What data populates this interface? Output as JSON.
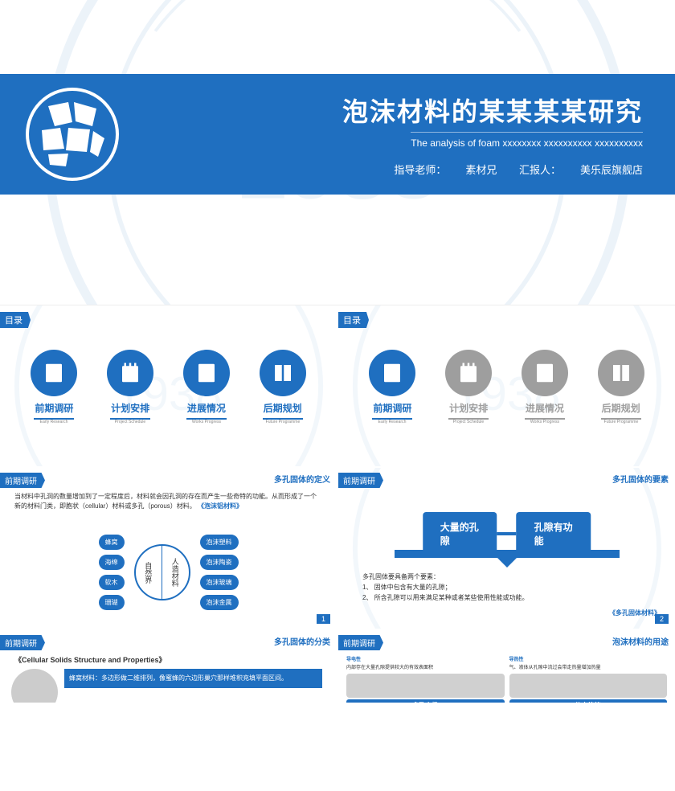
{
  "colors": {
    "primary": "#1f6fc0",
    "gray": "#9e9e9e",
    "dark": "#333333",
    "white": "#ffffff"
  },
  "title": {
    "main": "泡沫材料的某某某某研究",
    "sub": "The analysis of foam xxxxxxxx xxxxxxxxxx xxxxxxxxxx",
    "advisor_label": "指导老师：",
    "advisor": "素材兄",
    "reporter_label": "汇报人：",
    "reporter": "美乐辰旗舰店"
  },
  "toc": {
    "label": "目录",
    "items": [
      {
        "cn": "前期调研",
        "en": "Early Research"
      },
      {
        "cn": "计划安排",
        "en": "Project Schedule"
      },
      {
        "cn": "进展情况",
        "en": "Works Progress"
      },
      {
        "cn": "后期规划",
        "en": "Future Programme"
      }
    ],
    "active_index": 0
  },
  "s3": {
    "section": "前期调研",
    "heading": "多孔固体的定义",
    "text": "当材料中孔洞的数量增加到了一定程度后，材料就会因孔洞的存在而产生一些奇特的功能。从而形成了一个新的材料门类，即胞状（cellular）材料或多孔（porous）材料。",
    "ref": "《泡沫铝材料》",
    "center_left": "自然界",
    "center_right": "人造材料",
    "left_bubbles": [
      "蜂窝",
      "海绵",
      "软木",
      "珊瑚"
    ],
    "right_bubbles": [
      "泡沫塑料",
      "泡沫陶瓷",
      "泡沫玻璃",
      "泡沫金属"
    ],
    "page": "1"
  },
  "s4": {
    "section": "前期调研",
    "heading": "多孔固体的要素",
    "pill_left": "大量的孔隙",
    "pill_right": "孔隙有功能",
    "text_intro": "多孔固体要具备两个要素：",
    "text_1": "1、 固体中包含有大量的孔隙；",
    "text_2": "2、 所含孔隙可以用来满足某种或者某些使用性能或功能。",
    "ref": "《多孔固体材料》",
    "page": "2"
  },
  "s5": {
    "section": "前期调研",
    "heading": "多孔固体的分类",
    "title": "《Cellular Solids Structure and Properties》",
    "text": "蜂窝材料：多边形做二维排列，像蜜蜂的六边形巢穴那样堆积充填平面区间。"
  },
  "s6": {
    "section": "前期调研",
    "heading": "泡沫材料的用途",
    "cols": [
      {
        "label": "多孔电极",
        "top": "导电性",
        "txt": "内部存在大量孔隙提供较大的有效表面积"
      },
      {
        "label": "热交换管",
        "top": "导热性",
        "txt": "气、液体从孔隙中流过会带走热量增加热量"
      }
    ]
  }
}
